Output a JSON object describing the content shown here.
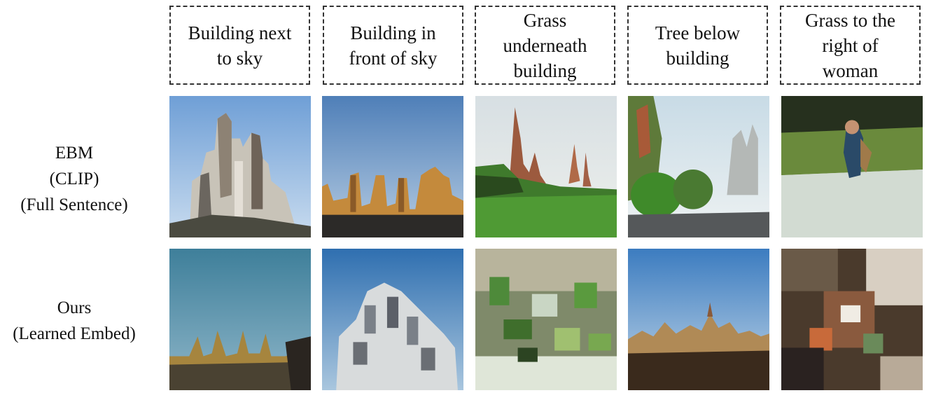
{
  "prompts": [
    "Building next\nto sky",
    "Building in\nfront of sky",
    "Grass\nunderneath\nbuilding",
    "Tree below\nbuilding",
    "Grass to the\nright of\nwoman"
  ],
  "rows": [
    {
      "label": "EBM\n(CLIP)\n(Full Sentence)"
    },
    {
      "label": "Ours\n(Learned Embed)"
    }
  ],
  "images": {
    "row1": [
      "generated-buildings-tall",
      "generated-buildings-skyline",
      "generated-grass-field",
      "generated-trees-city",
      "generated-woman-field"
    ],
    "row2": [
      "generated-spires-sky",
      "generated-building-cluster",
      "generated-noisy-trees",
      "generated-town-skyline",
      "generated-noisy-texture"
    ]
  }
}
